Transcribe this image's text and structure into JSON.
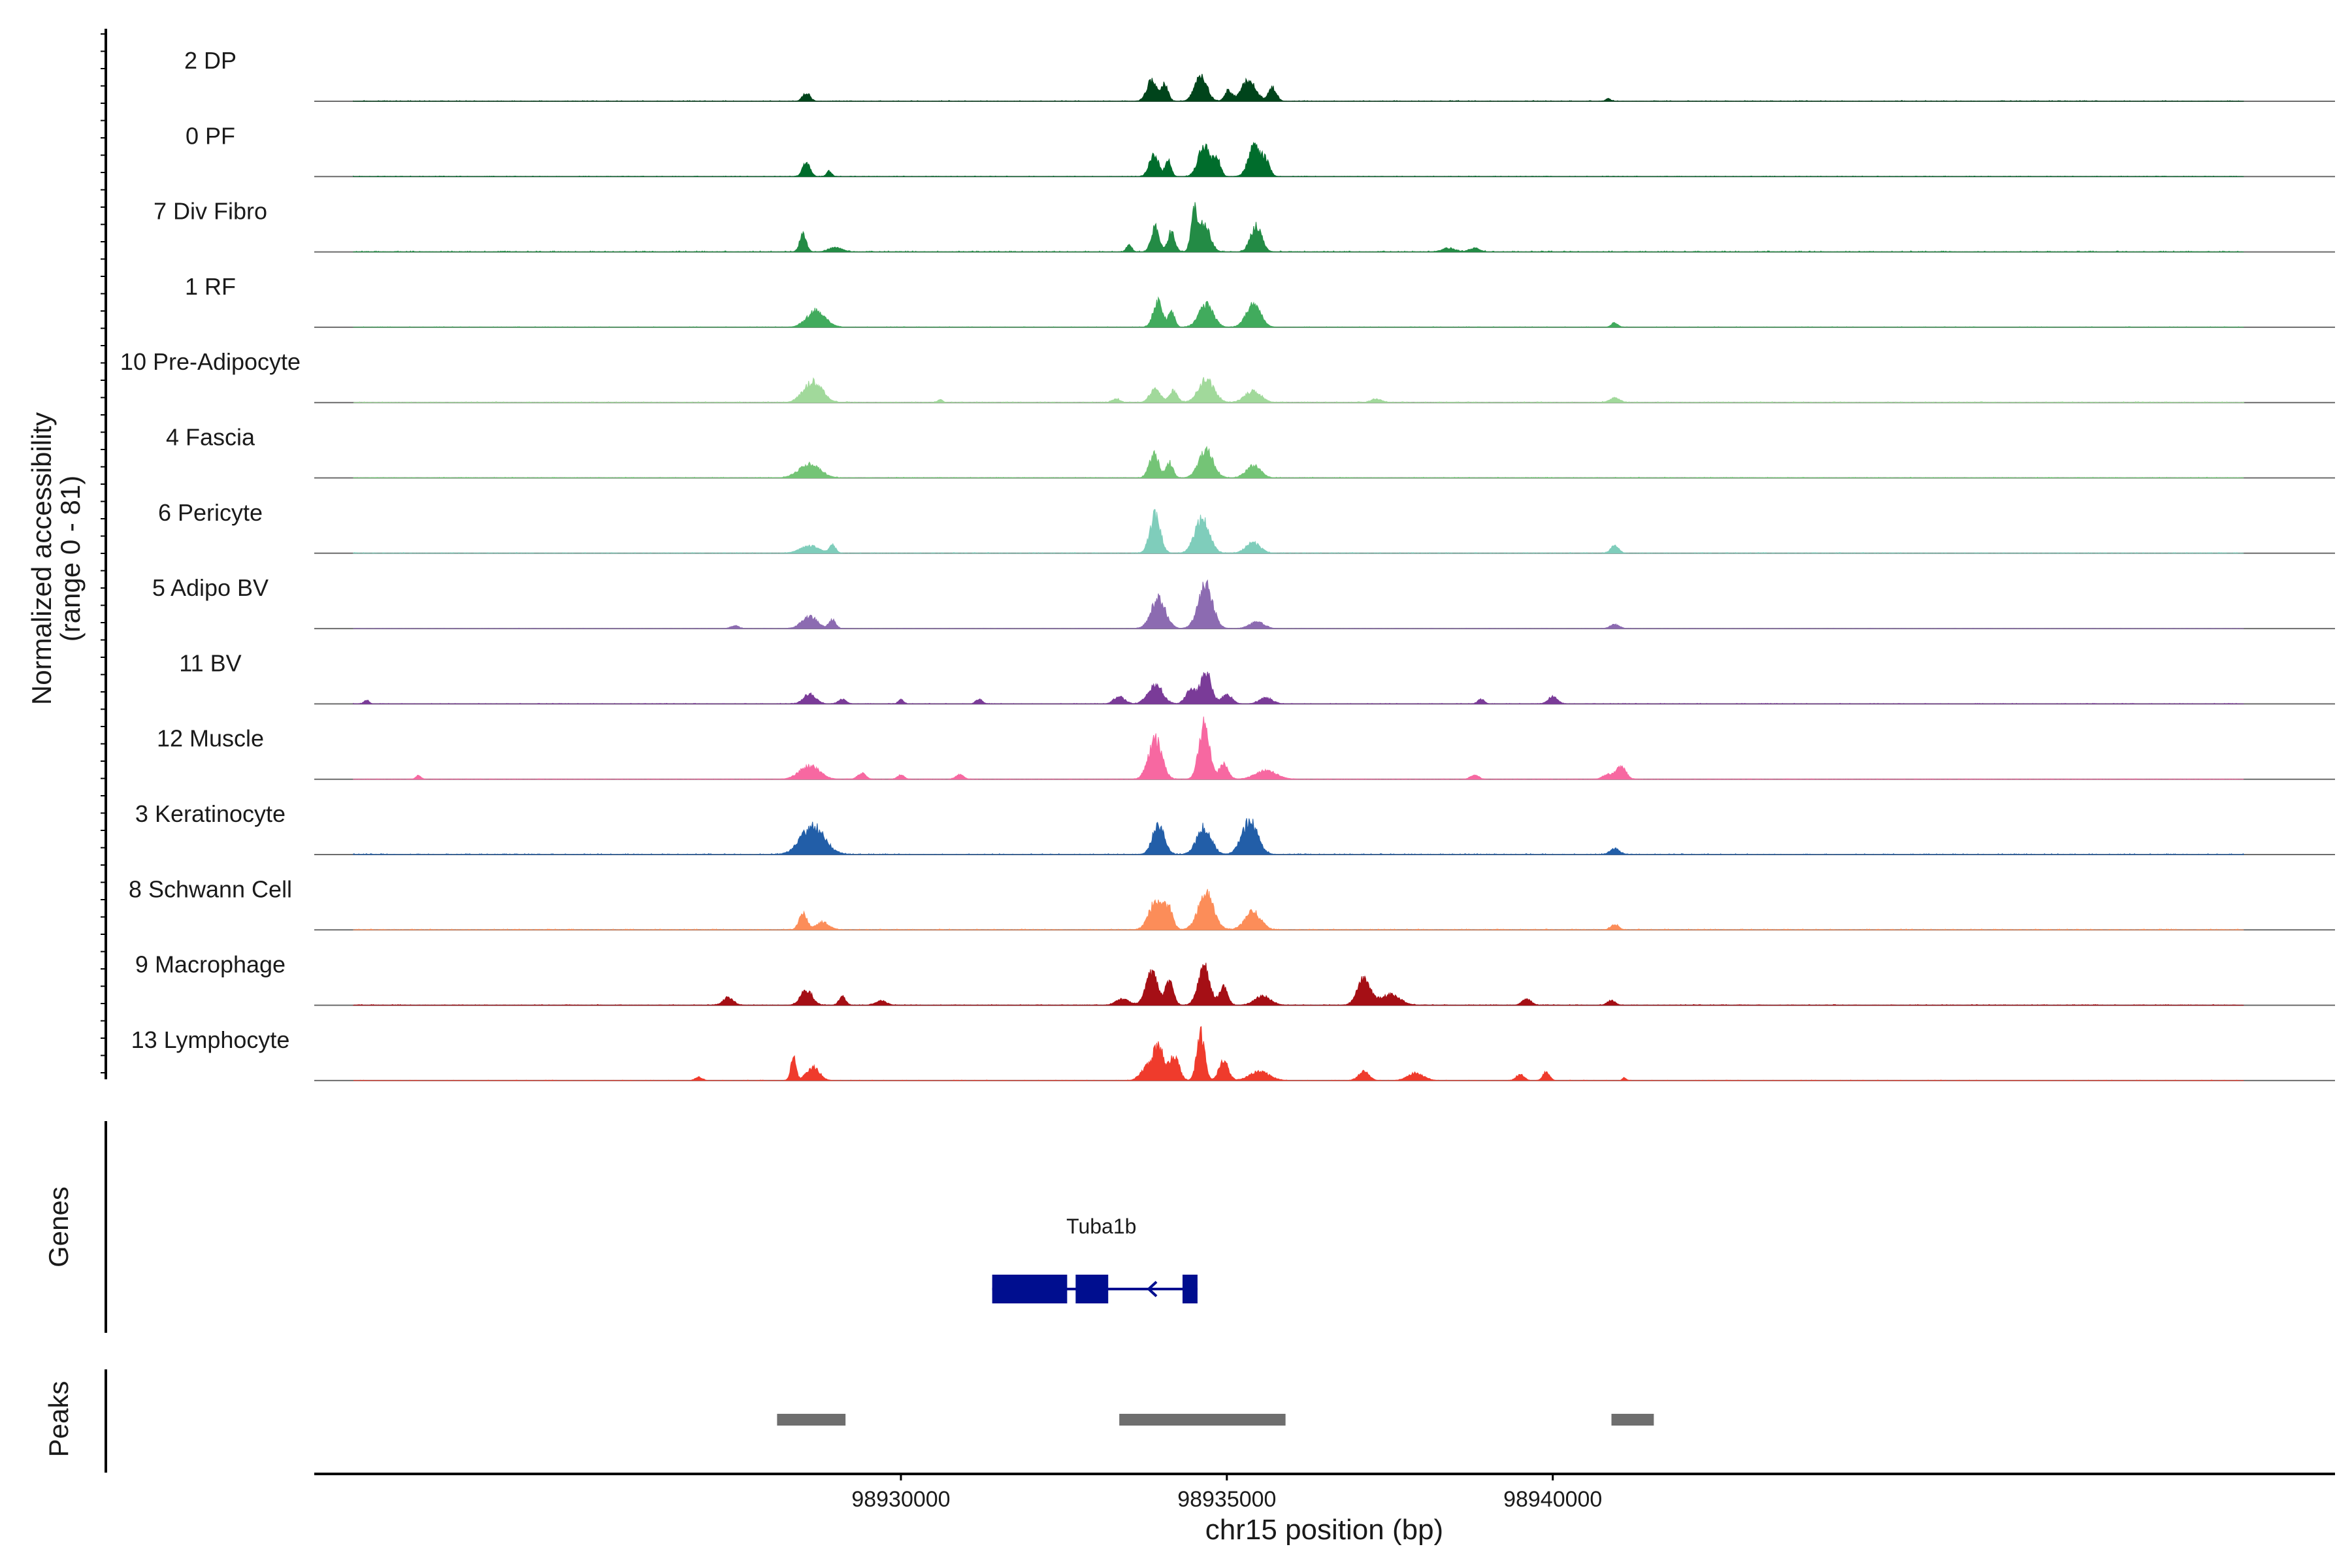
{
  "chart_data": {
    "type": "area",
    "ylabel_lines": [
      "Normalized accessibility",
      "(range 0 - 81)"
    ],
    "xlabel": "chr15 position (bp)",
    "xlim": [
      98921000,
      98952000
    ],
    "x_ticks": [
      {
        "value": 98930000,
        "label": "98930000"
      },
      {
        "value": 98935000,
        "label": "98935000"
      },
      {
        "value": 98940000,
        "label": "98940000"
      }
    ],
    "ylim": [
      0,
      81
    ],
    "tracks": [
      {
        "name": "2 DP",
        "color": "#00441b",
        "peaks": [
          [
            98928550,
            0.28,
            55
          ],
          [
            98933850,
            0.72,
            75
          ],
          [
            98934050,
            0.55,
            50
          ],
          [
            98934600,
            0.9,
            90
          ],
          [
            98935020,
            0.35,
            55
          ],
          [
            98935330,
            0.68,
            110
          ],
          [
            98935700,
            0.45,
            60
          ],
          [
            98940850,
            0.08,
            40
          ]
        ],
        "floor": 0.025
      },
      {
        "name": "0 PF",
        "color": "#006d2c",
        "peaks": [
          [
            98928550,
            0.5,
            55
          ],
          [
            98928900,
            0.18,
            40
          ],
          [
            98933880,
            0.75,
            70
          ],
          [
            98934100,
            0.55,
            45
          ],
          [
            98934650,
            1.0,
            90
          ],
          [
            98934850,
            0.55,
            55
          ],
          [
            98935420,
            1.0,
            90
          ],
          [
            98935600,
            0.5,
            60
          ]
        ],
        "floor": 0.02
      },
      {
        "name": "7 Div Fibro",
        "color": "#238b45",
        "peaks": [
          [
            98928500,
            0.6,
            50
          ],
          [
            98929000,
            0.15,
            100
          ],
          [
            98933500,
            0.25,
            40
          ],
          [
            98933900,
            0.85,
            60
          ],
          [
            98934150,
            0.65,
            55
          ],
          [
            98934500,
            1.2,
            50
          ],
          [
            98934650,
            0.9,
            90
          ],
          [
            98935450,
            0.85,
            85
          ],
          [
            98938400,
            0.12,
            100
          ],
          [
            98938800,
            0.12,
            80
          ]
        ],
        "floor": 0.035
      },
      {
        "name": "1 RF",
        "color": "#41ab5d",
        "peaks": [
          [
            98928700,
            0.55,
            140
          ],
          [
            98933940,
            0.85,
            70
          ],
          [
            98934150,
            0.5,
            50
          ],
          [
            98934680,
            0.75,
            110
          ],
          [
            98935410,
            0.75,
            110
          ],
          [
            98940950,
            0.15,
            50
          ]
        ],
        "floor": 0.02
      },
      {
        "name": "10 Pre-Adipocyte",
        "color": "#a1d99b",
        "peaks": [
          [
            98928650,
            0.7,
            140
          ],
          [
            98930600,
            0.1,
            40
          ],
          [
            98933300,
            0.12,
            60
          ],
          [
            98933900,
            0.45,
            80
          ],
          [
            98934180,
            0.4,
            60
          ],
          [
            98934680,
            0.75,
            120
          ],
          [
            98935400,
            0.38,
            120
          ],
          [
            98937300,
            0.12,
            80
          ],
          [
            98940950,
            0.15,
            80
          ]
        ],
        "floor": 0.03
      },
      {
        "name": "4 Fascia",
        "color": "#74c476",
        "peaks": [
          [
            98928600,
            0.45,
            160
          ],
          [
            98933880,
            0.82,
            70
          ],
          [
            98934120,
            0.5,
            55
          ],
          [
            98934680,
            0.92,
            110
          ],
          [
            98935410,
            0.4,
            110
          ]
        ],
        "floor": 0.025
      },
      {
        "name": "6 Pericyte",
        "color": "#7fcdbb",
        "peaks": [
          [
            98928600,
            0.25,
            140
          ],
          [
            98928950,
            0.25,
            50
          ],
          [
            98933900,
            1.25,
            80
          ],
          [
            98934620,
            1.15,
            110
          ],
          [
            98935400,
            0.35,
            110
          ],
          [
            98940950,
            0.25,
            60
          ]
        ],
        "floor": 0.025
      },
      {
        "name": "5 Adipo BV",
        "color": "#8c6bb1",
        "peaks": [
          [
            98927450,
            0.1,
            60
          ],
          [
            98928600,
            0.4,
            120
          ],
          [
            98928950,
            0.3,
            50
          ],
          [
            98933950,
            1.0,
            110
          ],
          [
            98934670,
            1.45,
            110
          ],
          [
            98935460,
            0.22,
            110
          ],
          [
            98940950,
            0.14,
            70
          ]
        ],
        "floor": 0.015
      },
      {
        "name": "11 BV",
        "color": "#7a3b98",
        "peaks": [
          [
            98921800,
            0.12,
            40
          ],
          [
            98928600,
            0.35,
            90
          ],
          [
            98929100,
            0.15,
            60
          ],
          [
            98930000,
            0.15,
            40
          ],
          [
            98931200,
            0.15,
            50
          ],
          [
            98933350,
            0.25,
            80
          ],
          [
            98933900,
            0.65,
            110
          ],
          [
            98934450,
            0.45,
            80
          ],
          [
            98934680,
            1.05,
            80
          ],
          [
            98935000,
            0.3,
            80
          ],
          [
            98935600,
            0.2,
            100
          ],
          [
            98938900,
            0.15,
            50
          ],
          [
            98940000,
            0.25,
            70
          ]
        ],
        "floor": 0.02
      },
      {
        "name": "12 Muscle",
        "color": "#f768a1",
        "peaks": [
          [
            98922600,
            0.12,
            40
          ],
          [
            98928600,
            0.45,
            150
          ],
          [
            98929400,
            0.2,
            60
          ],
          [
            98930000,
            0.15,
            50
          ],
          [
            98930900,
            0.15,
            60
          ],
          [
            98933900,
            1.35,
            100
          ],
          [
            98934650,
            1.8,
            80
          ],
          [
            98934950,
            0.5,
            70
          ],
          [
            98935600,
            0.28,
            160
          ],
          [
            98938800,
            0.15,
            60
          ],
          [
            98940850,
            0.15,
            80
          ],
          [
            98941050,
            0.45,
            70
          ]
        ],
        "floor": 0.015
      },
      {
        "name": "3 Keratinocyte",
        "color": "#225ea8",
        "peaks": [
          [
            98928650,
            0.95,
            180
          ],
          [
            98933950,
            1.0,
            90
          ],
          [
            98934650,
            0.9,
            110
          ],
          [
            98935350,
            1.1,
            120
          ],
          [
            98940950,
            0.2,
            70
          ]
        ],
        "floor": 0.03
      },
      {
        "name": "8 Schwann Cell",
        "color": "#fc8d59",
        "peaks": [
          [
            98928500,
            0.55,
            60
          ],
          [
            98928800,
            0.25,
            100
          ],
          [
            98933900,
            0.9,
            100
          ],
          [
            98934100,
            0.7,
            70
          ],
          [
            98934680,
            1.2,
            120
          ],
          [
            98935400,
            0.6,
            120
          ],
          [
            98940950,
            0.18,
            60
          ]
        ],
        "floor": 0.03
      },
      {
        "name": "9 Macrophage",
        "color": "#a50f15",
        "peaks": [
          [
            98927350,
            0.25,
            80
          ],
          [
            98928550,
            0.5,
            90
          ],
          [
            98929100,
            0.3,
            50
          ],
          [
            98929700,
            0.15,
            80
          ],
          [
            98933400,
            0.2,
            100
          ],
          [
            98933850,
            1.1,
            90
          ],
          [
            98934120,
            0.8,
            60
          ],
          [
            98934650,
            1.3,
            90
          ],
          [
            98934950,
            0.6,
            60
          ],
          [
            98935550,
            0.3,
            120
          ],
          [
            98937100,
            0.85,
            100
          ],
          [
            98937500,
            0.35,
            150
          ],
          [
            98939600,
            0.2,
            70
          ],
          [
            98940900,
            0.15,
            60
          ]
        ],
        "floor": 0.025
      },
      {
        "name": "13 Lymphocyte",
        "color": "#ef3b2c",
        "peaks": [
          [
            98926900,
            0.12,
            50
          ],
          [
            98928350,
            0.8,
            40
          ],
          [
            98928650,
            0.45,
            100
          ],
          [
            98933750,
            0.35,
            90
          ],
          [
            98933950,
            1.1,
            90
          ],
          [
            98934200,
            0.8,
            70
          ],
          [
            98934600,
            1.6,
            60
          ],
          [
            98934950,
            0.7,
            70
          ],
          [
            98935500,
            0.3,
            150
          ],
          [
            98937100,
            0.3,
            80
          ],
          [
            98937900,
            0.25,
            120
          ],
          [
            98939500,
            0.2,
            60
          ],
          [
            98939900,
            0.3,
            50
          ],
          [
            98941100,
            0.1,
            30
          ]
        ],
        "floor": 0.015
      }
    ],
    "genes": {
      "label": "Genes",
      "name": "Tuba1b",
      "color": "#000e8f",
      "strand": "-",
      "span": [
        98931400,
        98934550
      ],
      "exons": [
        [
          98931400,
          98932550
        ],
        [
          98932680,
          98933180
        ],
        [
          98934320,
          98934550
        ]
      ]
    },
    "peaks_track": {
      "label": "Peaks",
      "color": "#6e6e6e",
      "regions": [
        [
          98928100,
          98929150
        ],
        [
          98933350,
          98935900
        ],
        [
          98940900,
          98941550
        ]
      ]
    }
  }
}
